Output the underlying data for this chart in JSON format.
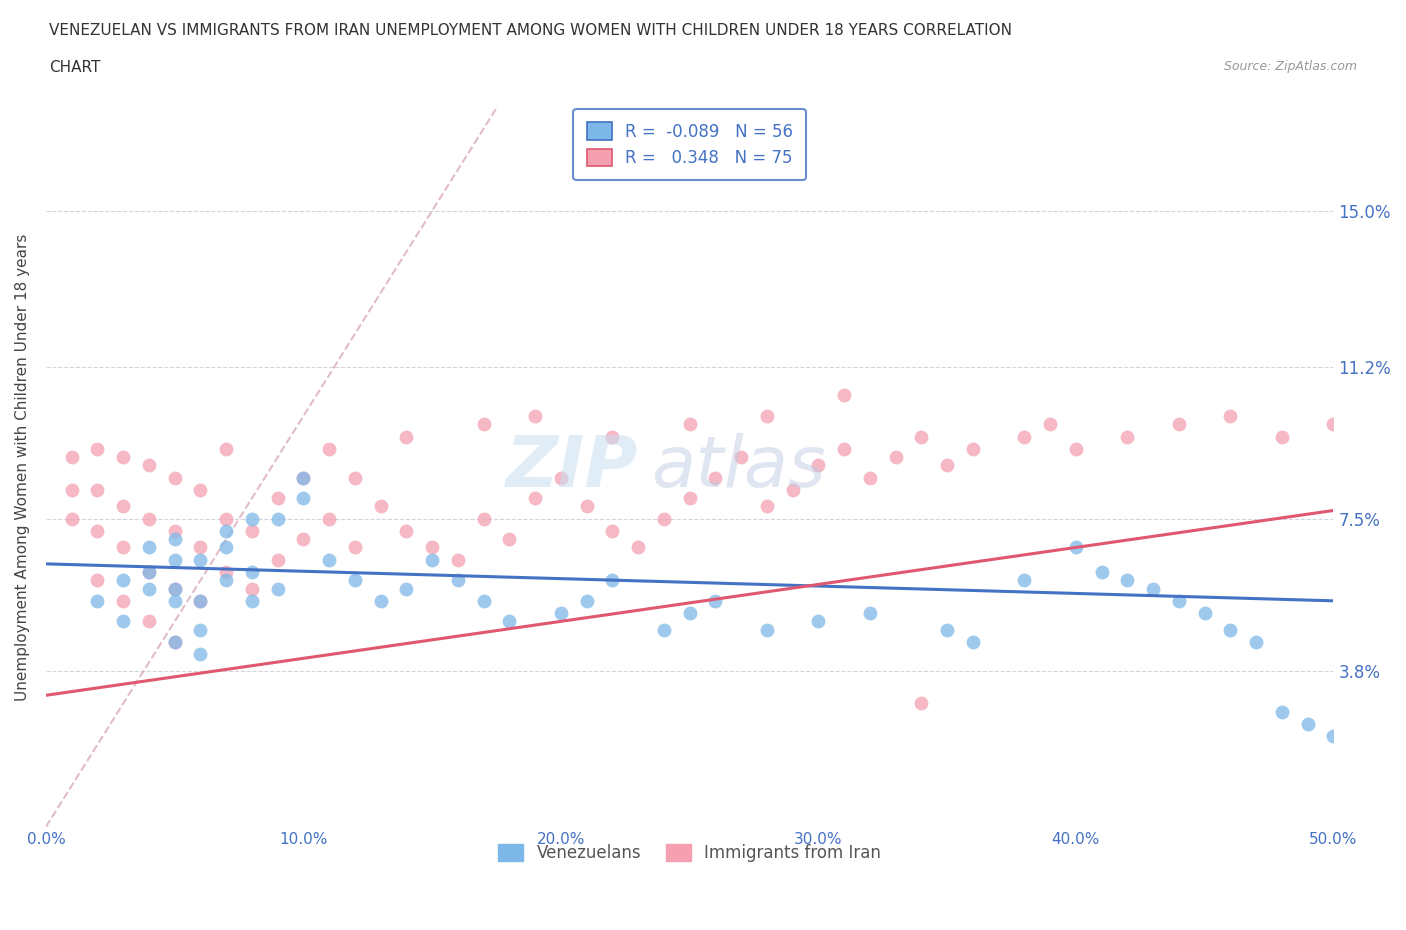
{
  "title_line1": "VENEZUELAN VS IMMIGRANTS FROM IRAN UNEMPLOYMENT AMONG WOMEN WITH CHILDREN UNDER 18 YEARS CORRELATION",
  "title_line2": "CHART",
  "source": "Source: ZipAtlas.com",
  "ylabel": "Unemployment Among Women with Children Under 18 years",
  "xmin": 0.0,
  "xmax": 0.5,
  "ymin": 0.0,
  "ymax": 0.175,
  "yticks": [
    0.038,
    0.075,
    0.112,
    0.15
  ],
  "ytick_labels": [
    "3.8%",
    "7.5%",
    "11.2%",
    "15.0%"
  ],
  "xticks": [
    0.0,
    0.1,
    0.2,
    0.3,
    0.4,
    0.5
  ],
  "xtick_labels": [
    "0.0%",
    "10.0%",
    "20.0%",
    "30.0%",
    "40.0%",
    "50.0%"
  ],
  "venezuelan_color": "#7eb8e8",
  "iran_color": "#f4a0b0",
  "trend_venezuela_color": "#4472c4",
  "trend_iran_color": "#e05870",
  "trend_diagonal_color": "#d4a0b0",
  "R_venezuela": -0.089,
  "N_venezuela": 56,
  "R_iran": 0.348,
  "N_iran": 75,
  "watermark_zip": "ZIP",
  "watermark_atlas": "atlas",
  "slope_ven": -0.018,
  "intercept_ven": 0.064,
  "slope_iran": 0.09,
  "intercept_iran": 0.032,
  "venezuelan_x": [
    0.02,
    0.03,
    0.03,
    0.04,
    0.04,
    0.04,
    0.05,
    0.05,
    0.05,
    0.05,
    0.05,
    0.06,
    0.06,
    0.06,
    0.06,
    0.07,
    0.07,
    0.07,
    0.08,
    0.08,
    0.08,
    0.09,
    0.09,
    0.1,
    0.1,
    0.11,
    0.12,
    0.13,
    0.14,
    0.15,
    0.16,
    0.17,
    0.18,
    0.2,
    0.21,
    0.22,
    0.24,
    0.25,
    0.26,
    0.28,
    0.3,
    0.32,
    0.35,
    0.36,
    0.38,
    0.4,
    0.41,
    0.43,
    0.44,
    0.45,
    0.46,
    0.47,
    0.48,
    0.49,
    0.5,
    0.42
  ],
  "venezuelan_y": [
    0.055,
    0.05,
    0.06,
    0.058,
    0.062,
    0.068,
    0.045,
    0.055,
    0.058,
    0.065,
    0.07,
    0.042,
    0.048,
    0.055,
    0.065,
    0.06,
    0.068,
    0.072,
    0.055,
    0.062,
    0.075,
    0.058,
    0.075,
    0.08,
    0.085,
    0.065,
    0.06,
    0.055,
    0.058,
    0.065,
    0.06,
    0.055,
    0.05,
    0.052,
    0.055,
    0.06,
    0.048,
    0.052,
    0.055,
    0.048,
    0.05,
    0.052,
    0.048,
    0.045,
    0.06,
    0.068,
    0.062,
    0.058,
    0.055,
    0.052,
    0.048,
    0.045,
    0.028,
    0.025,
    0.022,
    0.06
  ],
  "iran_x": [
    0.01,
    0.01,
    0.01,
    0.02,
    0.02,
    0.02,
    0.02,
    0.03,
    0.03,
    0.03,
    0.03,
    0.04,
    0.04,
    0.04,
    0.04,
    0.05,
    0.05,
    0.05,
    0.05,
    0.06,
    0.06,
    0.06,
    0.07,
    0.07,
    0.07,
    0.08,
    0.08,
    0.09,
    0.09,
    0.1,
    0.1,
    0.11,
    0.11,
    0.12,
    0.12,
    0.13,
    0.14,
    0.15,
    0.16,
    0.17,
    0.18,
    0.19,
    0.2,
    0.21,
    0.22,
    0.23,
    0.24,
    0.25,
    0.26,
    0.27,
    0.28,
    0.29,
    0.3,
    0.31,
    0.32,
    0.33,
    0.34,
    0.35,
    0.36,
    0.38,
    0.39,
    0.4,
    0.42,
    0.44,
    0.46,
    0.48,
    0.5,
    0.14,
    0.17,
    0.19,
    0.22,
    0.25,
    0.28,
    0.31,
    0.34
  ],
  "iran_y": [
    0.075,
    0.082,
    0.09,
    0.06,
    0.072,
    0.082,
    0.092,
    0.055,
    0.068,
    0.078,
    0.09,
    0.05,
    0.062,
    0.075,
    0.088,
    0.045,
    0.058,
    0.072,
    0.085,
    0.055,
    0.068,
    0.082,
    0.062,
    0.075,
    0.092,
    0.058,
    0.072,
    0.065,
    0.08,
    0.07,
    0.085,
    0.075,
    0.092,
    0.068,
    0.085,
    0.078,
    0.072,
    0.068,
    0.065,
    0.075,
    0.07,
    0.08,
    0.085,
    0.078,
    0.072,
    0.068,
    0.075,
    0.08,
    0.085,
    0.09,
    0.078,
    0.082,
    0.088,
    0.092,
    0.085,
    0.09,
    0.095,
    0.088,
    0.092,
    0.095,
    0.098,
    0.092,
    0.095,
    0.098,
    0.1,
    0.095,
    0.098,
    0.095,
    0.098,
    0.1,
    0.095,
    0.098,
    0.1,
    0.105,
    0.03
  ]
}
